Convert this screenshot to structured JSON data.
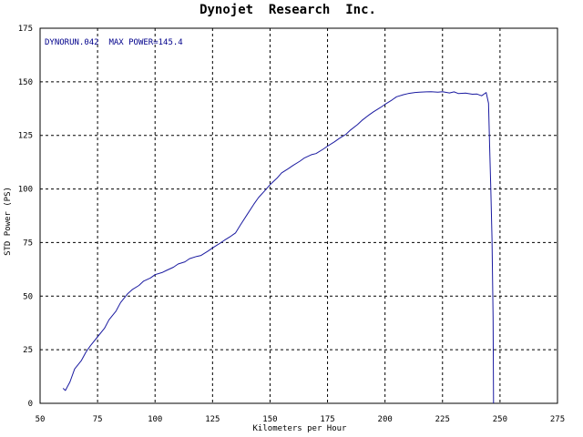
{
  "chart_data": {
    "type": "line",
    "title": "Dynojet  Research  Inc.",
    "xlabel": "Kilometers per Hour",
    "ylabel": "STD Power (PS)",
    "annotation": "DYNORUN.042  MAX POWER=145.4",
    "xlim": [
      50,
      275
    ],
    "ylim": [
      0,
      175
    ],
    "x_ticks": [
      50,
      75,
      100,
      125,
      150,
      175,
      200,
      225,
      250,
      275
    ],
    "y_ticks": [
      0,
      25,
      50,
      75,
      100,
      125,
      150,
      175
    ],
    "x_tick_labels": [
      "50",
      "75",
      "100",
      "125",
      "150",
      "175",
      "200",
      "225",
      "250",
      "275"
    ],
    "y_tick_labels": [
      "0",
      "25",
      "50",
      "75",
      "100",
      "125",
      "150",
      "175"
    ],
    "grid": true,
    "grid_style": "dashed",
    "colors": {
      "line": "#1a1aa0",
      "annotation": "#00008b",
      "grid": "#000000"
    },
    "series": [
      {
        "values_x": [
          60,
          61,
          63,
          65,
          68,
          70,
          72,
          75,
          78,
          80,
          83,
          85,
          88,
          90,
          93,
          95,
          98,
          100,
          103,
          105,
          108,
          110,
          113,
          115,
          118,
          120,
          123,
          125,
          128,
          130,
          133,
          135,
          137,
          140,
          143,
          145,
          148,
          150,
          153,
          155,
          158,
          160,
          163,
          165,
          168,
          170,
          173,
          175,
          178,
          180,
          183,
          185,
          188,
          190,
          193,
          195,
          198,
          200,
          203,
          205,
          208,
          210,
          213,
          215,
          218,
          220,
          223,
          225,
          228,
          230,
          232,
          235,
          238,
          240,
          242,
          244,
          245,
          245.5,
          246,
          246.5,
          247,
          247.2
        ],
        "values_y": [
          7,
          6,
          10,
          16,
          20,
          24,
          27,
          31,
          35,
          39,
          43,
          47,
          51,
          53,
          55,
          57,
          58.5,
          60,
          61,
          62,
          63.5,
          65,
          66,
          67.5,
          68.5,
          69,
          71,
          72.5,
          74.5,
          76,
          78,
          79.5,
          83,
          88,
          93,
          96,
          99.5,
          102,
          105,
          107.5,
          109.5,
          111,
          113,
          114.5,
          116,
          116.5,
          118.5,
          120,
          122,
          123.5,
          125.5,
          127.5,
          130,
          132,
          134.5,
          136,
          138,
          139.5,
          141.5,
          143,
          144,
          144.5,
          145,
          145.2,
          145.3,
          145.4,
          145.2,
          145.4,
          144.8,
          145.3,
          144.5,
          144.7,
          144.2,
          144.3,
          143.5,
          145,
          140,
          120,
          100,
          77,
          40,
          0
        ]
      }
    ]
  }
}
